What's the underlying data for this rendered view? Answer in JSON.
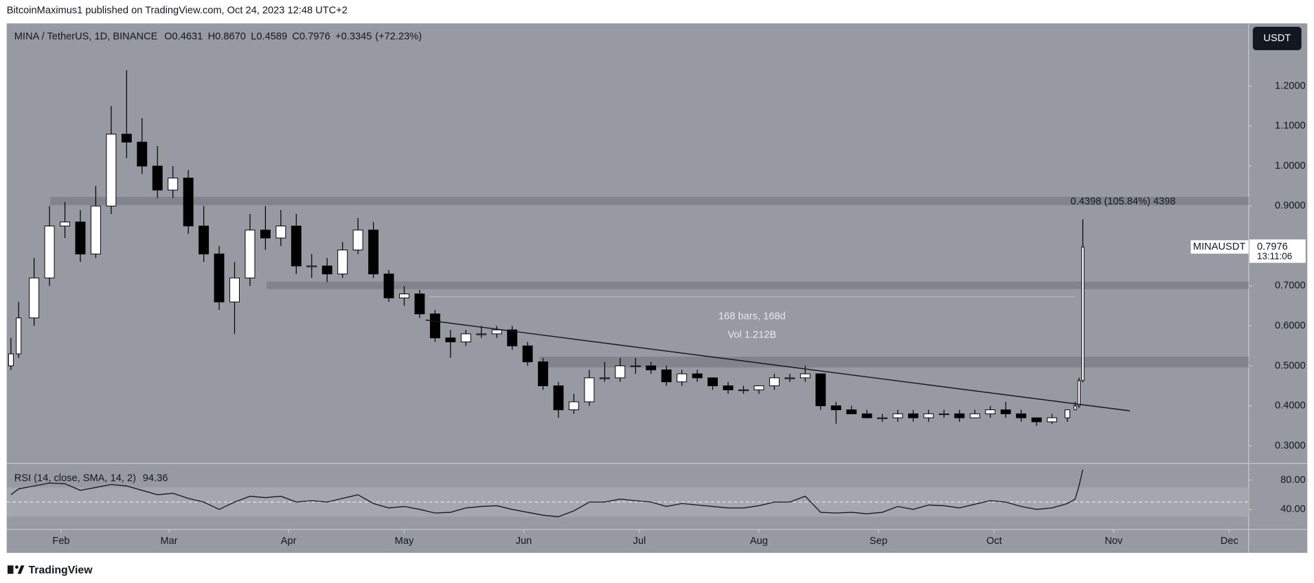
{
  "header": {
    "text": "BitcoinMaximus1 published on TradingView.com, Oct 24, 2023 12:48 UTC+2"
  },
  "footer": {
    "brand": "TradingView"
  },
  "chart_data": [
    {
      "type": "candlestick",
      "symbol": "MINA / TetherUS, 1D, BINANCE",
      "legend": [
        {
          "key": "O",
          "value": "0.4631"
        },
        {
          "key": "H",
          "value": "0.8670"
        },
        {
          "key": "L",
          "value": "0.4589"
        },
        {
          "key": "C",
          "value": "0.7976"
        }
      ],
      "change": "+0.3345",
      "change_pct": "(+72.23%)",
      "currency": "USDT",
      "x": [
        19,
        21,
        25,
        29,
        33,
        37,
        41,
        45,
        49,
        53,
        57,
        61,
        65,
        69,
        73,
        77,
        81,
        85,
        89,
        93,
        97,
        101,
        105,
        109,
        113,
        117,
        121,
        125,
        129,
        133,
        137,
        141,
        145,
        149,
        153,
        157,
        161,
        165,
        169,
        173,
        177,
        181,
        185,
        189,
        193,
        197,
        201,
        205,
        209,
        213,
        217,
        221,
        225,
        229,
        233,
        237,
        241,
        245,
        249,
        253,
        257,
        261,
        265,
        269,
        273,
        277,
        281,
        285,
        289,
        293,
        295,
        296,
        297
      ],
      "open": [
        0.5,
        0.53,
        0.62,
        0.72,
        0.85,
        0.86,
        0.78,
        0.9,
        1.08,
        1.06,
        1.0,
        0.94,
        0.97,
        0.85,
        0.78,
        0.66,
        0.72,
        0.84,
        0.82,
        0.85,
        0.75,
        0.75,
        0.73,
        0.79,
        0.84,
        0.73,
        0.67,
        0.68,
        0.63,
        0.57,
        0.56,
        0.58,
        0.58,
        0.59,
        0.55,
        0.51,
        0.45,
        0.39,
        0.41,
        0.47,
        0.47,
        0.5,
        0.5,
        0.49,
        0.46,
        0.48,
        0.47,
        0.45,
        0.44,
        0.44,
        0.45,
        0.47,
        0.47,
        0.48,
        0.4,
        0.39,
        0.38,
        0.37,
        0.37,
        0.38,
        0.37,
        0.38,
        0.38,
        0.37,
        0.38,
        0.39,
        0.38,
        0.37,
        0.36,
        0.37,
        0.39,
        0.4,
        0.4631
      ],
      "high": [
        0.57,
        0.66,
        0.77,
        0.9,
        0.91,
        0.89,
        0.95,
        1.15,
        1.24,
        1.12,
        1.05,
        1.0,
        0.99,
        0.9,
        0.8,
        0.76,
        0.88,
        0.9,
        0.89,
        0.88,
        0.78,
        0.77,
        0.81,
        0.87,
        0.86,
        0.74,
        0.7,
        0.69,
        0.64,
        0.59,
        0.59,
        0.6,
        0.6,
        0.6,
        0.56,
        0.52,
        0.46,
        0.43,
        0.49,
        0.51,
        0.52,
        0.52,
        0.51,
        0.5,
        0.49,
        0.49,
        0.47,
        0.46,
        0.45,
        0.45,
        0.48,
        0.48,
        0.5,
        0.48,
        0.41,
        0.4,
        0.39,
        0.38,
        0.39,
        0.39,
        0.39,
        0.39,
        0.39,
        0.39,
        0.4,
        0.41,
        0.39,
        0.37,
        0.38,
        0.39,
        0.41,
        0.47,
        0.867
      ],
      "low": [
        0.49,
        0.52,
        0.6,
        0.7,
        0.82,
        0.76,
        0.77,
        0.88,
        1.02,
        0.98,
        0.92,
        0.92,
        0.83,
        0.76,
        0.64,
        0.58,
        0.7,
        0.79,
        0.8,
        0.73,
        0.72,
        0.71,
        0.72,
        0.78,
        0.72,
        0.66,
        0.65,
        0.62,
        0.56,
        0.52,
        0.55,
        0.57,
        0.57,
        0.54,
        0.5,
        0.44,
        0.37,
        0.38,
        0.4,
        0.46,
        0.46,
        0.48,
        0.48,
        0.45,
        0.45,
        0.46,
        0.44,
        0.43,
        0.43,
        0.43,
        0.44,
        0.46,
        0.46,
        0.39,
        0.355,
        0.38,
        0.37,
        0.36,
        0.36,
        0.36,
        0.36,
        0.37,
        0.36,
        0.37,
        0.37,
        0.37,
        0.36,
        0.35,
        0.355,
        0.36,
        0.39,
        0.395,
        0.4589
      ],
      "close": [
        0.53,
        0.62,
        0.72,
        0.85,
        0.86,
        0.78,
        0.9,
        1.08,
        1.06,
        1.0,
        0.94,
        0.97,
        0.85,
        0.78,
        0.66,
        0.72,
        0.84,
        0.82,
        0.85,
        0.75,
        0.75,
        0.73,
        0.79,
        0.84,
        0.73,
        0.67,
        0.68,
        0.63,
        0.57,
        0.56,
        0.58,
        0.58,
        0.59,
        0.55,
        0.51,
        0.45,
        0.39,
        0.41,
        0.47,
        0.47,
        0.5,
        0.5,
        0.49,
        0.46,
        0.48,
        0.47,
        0.45,
        0.44,
        0.44,
        0.45,
        0.47,
        0.47,
        0.48,
        0.4,
        0.39,
        0.38,
        0.37,
        0.37,
        0.38,
        0.37,
        0.38,
        0.38,
        0.37,
        0.38,
        0.39,
        0.38,
        0.37,
        0.36,
        0.37,
        0.39,
        0.4,
        0.4631,
        0.7976
      ],
      "up_color": "#ffffff",
      "down_color": "#000000",
      "xlim": [
        17.9,
        340
      ],
      "xticks": [
        {
          "value": 32,
          "label": "Feb"
        },
        {
          "value": 60,
          "label": "Mar"
        },
        {
          "value": 91,
          "label": "Apr"
        },
        {
          "value": 121,
          "label": "May"
        },
        {
          "value": 152,
          "label": "Jun"
        },
        {
          "value": 182,
          "label": "Jul"
        },
        {
          "value": 213,
          "label": "Aug"
        },
        {
          "value": 244,
          "label": "Sep"
        },
        {
          "value": 274,
          "label": "Oct"
        },
        {
          "value": 305,
          "label": "Nov"
        },
        {
          "value": 335,
          "label": "Dec"
        }
      ],
      "ylim": [
        0.258,
        1.357
      ],
      "yticks": [
        {
          "value": 0.3,
          "label": "0.3000"
        },
        {
          "value": 0.4,
          "label": "0.4000"
        },
        {
          "value": 0.5,
          "label": "0.5000"
        },
        {
          "value": 0.6,
          "label": "0.6000"
        },
        {
          "value": 0.7,
          "label": "0.7000"
        },
        {
          "value": 0.8,
          "label": "0.8000"
        },
        {
          "value": 0.9,
          "label": "0.9000"
        },
        {
          "value": 1.0,
          "label": "1.0000"
        },
        {
          "value": 1.1,
          "label": "1.1000"
        },
        {
          "value": 1.2,
          "label": "1.2000"
        }
      ],
      "grid": false,
      "zones": [
        {
          "x0": 29.2,
          "lo": 0.902,
          "hi": 0.923
        },
        {
          "x0": 85.3,
          "lo": 0.692,
          "hi": 0.711
        },
        {
          "x0": 156,
          "lo": 0.496,
          "hi": 0.523
        }
      ],
      "zone_color": "#7d8088",
      "trendline": {
        "x": [
          126.6,
          309.2
        ],
        "y": [
          0.6147,
          0.3874
        ]
      },
      "measure": {
        "x": [
          127.4,
          295
        ],
        "y": 0.673,
        "texts": [
          "168 bars, 168d",
          "Vol 1.212B"
        ]
      },
      "range_label": "0.4398 (105.84%) 4398",
      "price_tag": {
        "symbol": "MINAUSDT",
        "countdown": "13:11:06"
      }
    },
    {
      "type": "line",
      "title": "RSI (14, close, SMA, 14, 2)",
      "x": [
        19,
        21,
        25,
        29,
        33,
        37,
        41,
        45,
        49,
        53,
        57,
        61,
        65,
        69,
        73,
        77,
        81,
        85,
        89,
        93,
        97,
        101,
        105,
        109,
        113,
        117,
        121,
        125,
        129,
        133,
        137,
        141,
        145,
        149,
        153,
        157,
        161,
        165,
        169,
        173,
        177,
        181,
        185,
        189,
        193,
        197,
        201,
        205,
        209,
        213,
        217,
        221,
        225,
        229,
        233,
        237,
        241,
        245,
        249,
        253,
        257,
        261,
        265,
        269,
        273,
        277,
        281,
        285,
        289,
        293,
        295,
        296,
        297
      ],
      "values": [
        60,
        68,
        72,
        76,
        75,
        66,
        70,
        74,
        72,
        66,
        60,
        62,
        55,
        50,
        40,
        50,
        58,
        56,
        58,
        50,
        52,
        50,
        55,
        60,
        48,
        42,
        44,
        40,
        35,
        36,
        42,
        44,
        45,
        40,
        36,
        32,
        30,
        38,
        50,
        50,
        54,
        52,
        50,
        44,
        48,
        46,
        44,
        42,
        42,
        45,
        50,
        50,
        58,
        36,
        35,
        36,
        34,
        36,
        44,
        40,
        46,
        45,
        42,
        47,
        52,
        50,
        44,
        40,
        42,
        48,
        54,
        72,
        94.36
      ],
      "color": "#131722",
      "ylim": [
        13.7,
        101.7
      ],
      "yticks": [
        {
          "value": 80,
          "label": "80.00"
        },
        {
          "value": 40,
          "label": "40.00"
        }
      ],
      "bands": [
        30,
        70
      ],
      "midline": 50
    }
  ]
}
